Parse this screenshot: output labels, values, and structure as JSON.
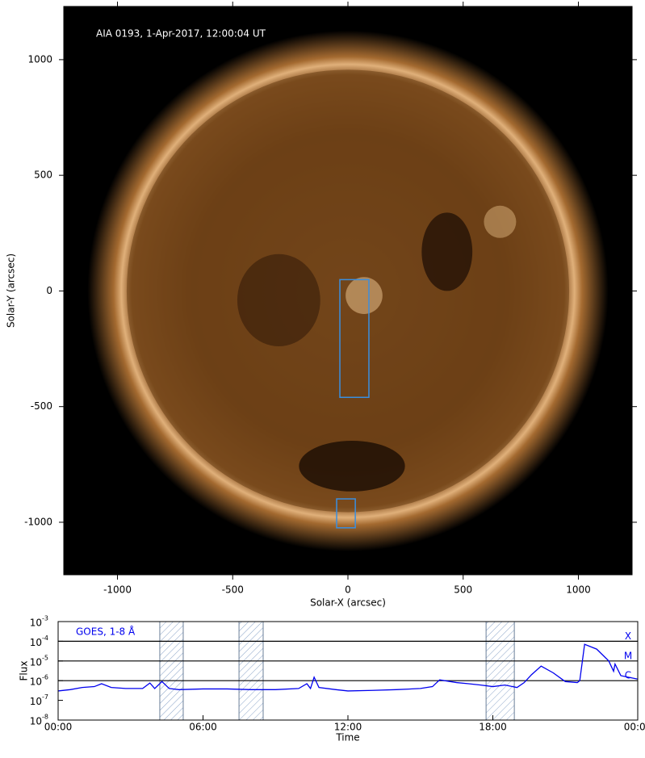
{
  "chart_data": [
    {
      "type": "image",
      "annotation": "AIA 0193, 1-Apr-2017, 12:00:04 UT",
      "xlabel": "Solar-X (arcsec)",
      "ylabel": "Solar-Y (arcsec)",
      "xlim": [
        -1233,
        1233
      ],
      "ylim": [
        -1227,
        1230
      ],
      "xticks": [
        -1000,
        -500,
        0,
        500,
        1000
      ],
      "yticks": [
        -1000,
        -500,
        0,
        500,
        1000
      ],
      "boxes": [
        {
          "x": [
            -35,
            91
          ],
          "y": [
            -460,
            49
          ],
          "color": "#3a8fe0"
        },
        {
          "x": [
            -49,
            32
          ],
          "y": [
            -1024,
            -899
          ],
          "color": "#3a8fe0"
        }
      ]
    },
    {
      "type": "line",
      "xlabel": "Time",
      "ylabel": "Flux",
      "log_y": true,
      "xlim": [
        0,
        24
      ],
      "ylim": [
        1e-08,
        0.001
      ],
      "xticks": [
        {
          "value": 0,
          "label": "00:00"
        },
        {
          "value": 6,
          "label": "06:00"
        },
        {
          "value": 12,
          "label": "12:00"
        },
        {
          "value": 18,
          "label": "18:00"
        },
        {
          "value": 24,
          "label": "00:00"
        }
      ],
      "yticks": [
        {
          "value": 1e-08,
          "label": "10",
          "exponent": "-8"
        },
        {
          "value": 1e-07,
          "label": "10",
          "exponent": "-7"
        },
        {
          "value": 1e-06,
          "label": "10",
          "exponent": "-6"
        },
        {
          "value": 1e-05,
          "label": "10",
          "exponent": "-5"
        },
        {
          "value": 0.0001,
          "label": "10",
          "exponent": "-4"
        },
        {
          "value": 0.001,
          "label": "10",
          "exponent": "-3"
        }
      ],
      "flare_levels": [
        {
          "label": "X",
          "value": 0.0001
        },
        {
          "label": "M",
          "value": 1e-05
        },
        {
          "label": "C",
          "value": 1e-06
        }
      ],
      "shaded_intervals": [
        [
          4.21,
          5.18
        ],
        [
          7.49,
          8.49
        ],
        [
          17.72,
          18.89
        ]
      ],
      "x": [
        0,
        0.5,
        1.0,
        1.5,
        1.8,
        2.2,
        2.8,
        3.5,
        3.8,
        4.0,
        4.3,
        4.6,
        5.0,
        6.0,
        7.0,
        8.0,
        9.0,
        9.96,
        10.3,
        10.45,
        10.6,
        10.8,
        11.5,
        12,
        13,
        14,
        15,
        15.5,
        15.8,
        16.5,
        17.0,
        17.5,
        18.0,
        18.5,
        19.0,
        19.3,
        19.6,
        20.0,
        20.5,
        21.0,
        21.5,
        21.6,
        21.8,
        22.3,
        22.8,
        23.0,
        23.06,
        23.3,
        23.6,
        24
      ],
      "series": [
        {
          "name": "GOES, 1-8 Å",
          "color": "#0000ee",
          "values": [
            3e-07,
            3.5e-07,
            4.5e-07,
            5e-07,
            7e-07,
            4.5e-07,
            4e-07,
            4e-07,
            7.6e-07,
            4e-07,
            9e-07,
            4e-07,
            3.5e-07,
            3.8e-07,
            3.8e-07,
            3.5e-07,
            3.5e-07,
            4e-07,
            7e-07,
            4e-07,
            1.5e-06,
            4.5e-07,
            3.5e-07,
            3e-07,
            3.2e-07,
            3.5e-07,
            4e-07,
            5e-07,
            1.1e-06,
            8e-07,
            7e-07,
            6e-07,
            5e-07,
            6e-07,
            4.5e-07,
            8e-07,
            2e-06,
            5.5e-06,
            2.5e-06,
            9e-07,
            8e-07,
            1e-06,
            7e-05,
            4e-05,
            1e-05,
            3e-06,
            7e-06,
            1.8e-06,
            1.5e-06,
            1.2e-06
          ]
        }
      ]
    }
  ]
}
